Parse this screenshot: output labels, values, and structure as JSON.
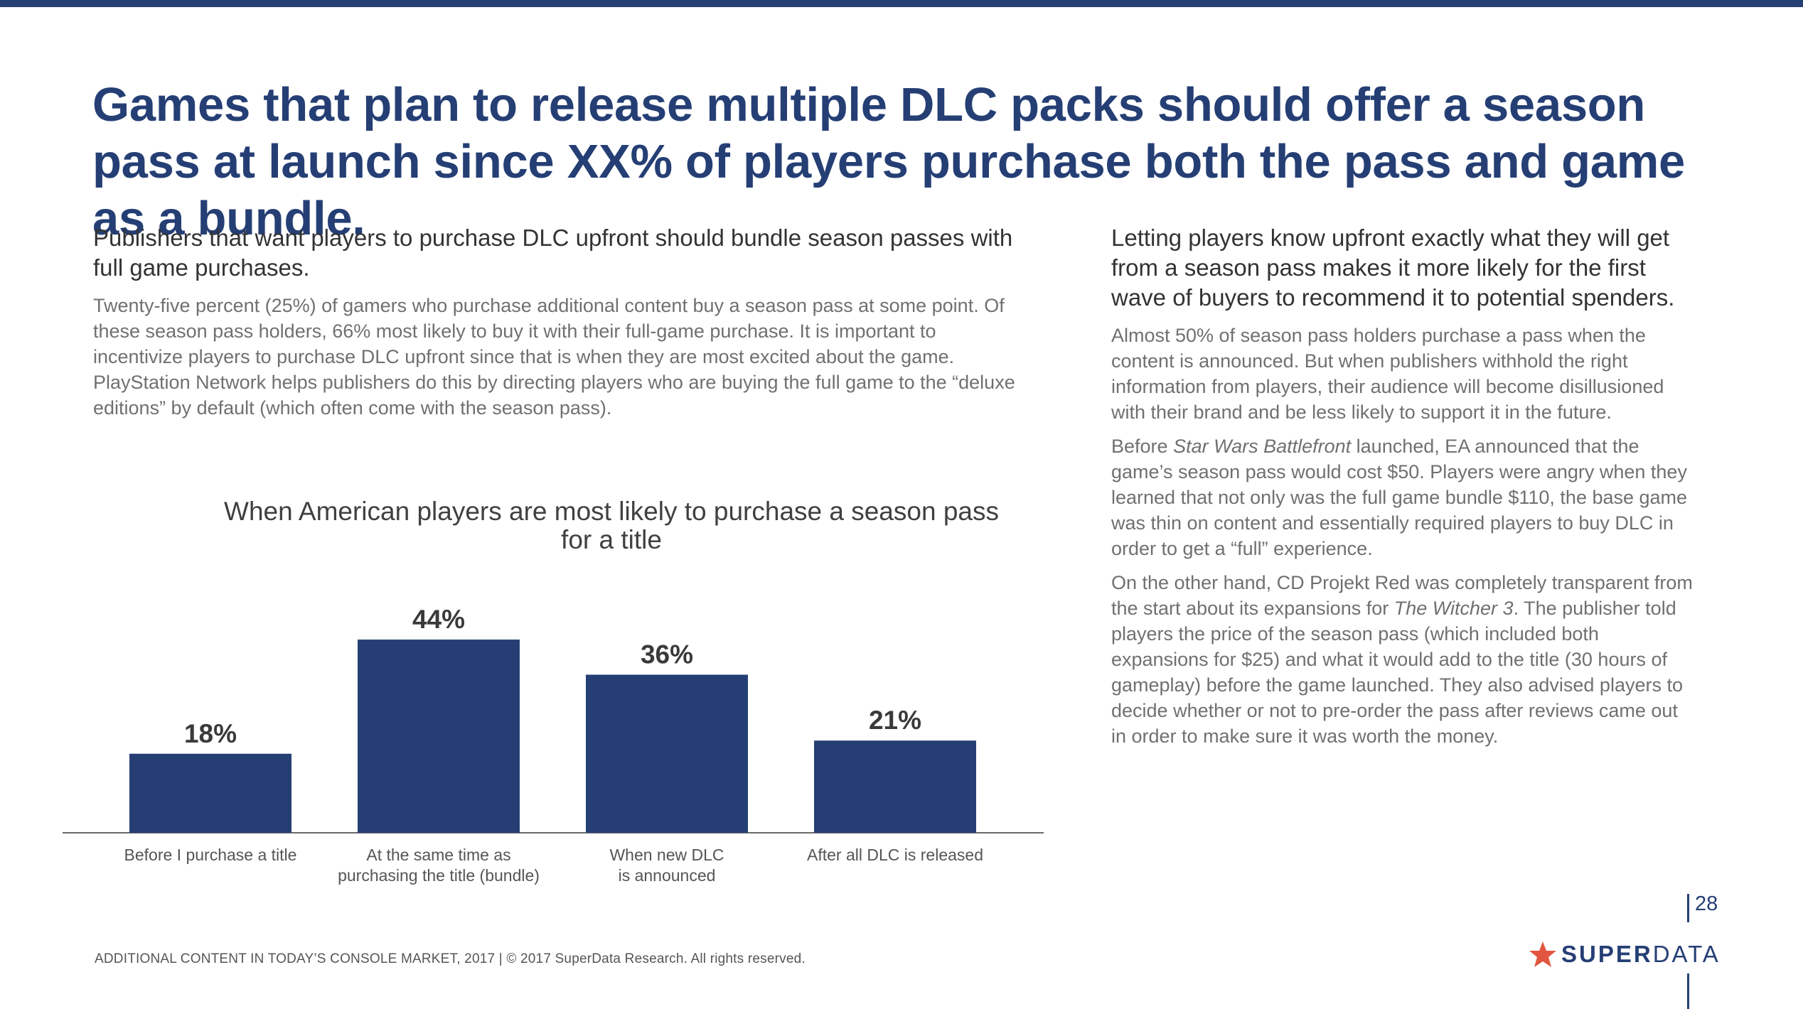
{
  "headline": "Games that plan to release multiple DLC packs should offer a season pass at launch since XX% of players purchase both the pass and game as a bundle.",
  "left": {
    "subhead": "Publishers that want players to purchase DLC upfront should bundle season passes with full game purchases.",
    "body": "Twenty-five percent (25%) of gamers who purchase additional content buy a season pass at some point. Of these season pass holders, 66% most likely to buy it with their full-game purchase. It is important to incentivize players to purchase DLC upfront since that is when they are most excited about the game. PlayStation Network helps publishers do this by directing players who are buying the full game to the “deluxe editions” by default (which often come with the season pass)."
  },
  "right": {
    "subhead": "Letting players know upfront exactly what they will get from a season pass makes it more likely for the first wave of buyers to recommend it to potential spenders.",
    "p1": "Almost 50% of season pass holders purchase a pass when the content is announced. But when publishers withhold the right information from players, their audience will become disillusioned with their brand and be less likely to support it in the future.",
    "p2_pre": "Before ",
    "p2_em": "Star Wars Battlefront",
    "p2_post": " launched, EA announced that the game’s season pass would cost $50. Players were angry when they learned that not only was the full game bundle $110, the base game was thin on content and essentially required players to buy DLC in order to get a “full” experience.",
    "p3_pre": "On the other hand, CD Projekt Red was completely transparent from the start about its expansions for ",
    "p3_em": "The Witcher 3",
    "p3_post": ". The publisher told players the price of the season pass (which included both expansions for $25) and what it would add to the title (30 hours of gameplay) before the game launched. They also advised players to decide whether or not to pre-order the pass after reviews came out in order to make sure it was worth the money."
  },
  "chart_data": {
    "type": "bar",
    "title": "When American players are most likely to purchase a season pass for a title",
    "categories": [
      [
        "Before I purchase a title"
      ],
      [
        "At the same time as",
        "purchasing the title (bundle)"
      ],
      [
        "When new DLC",
        "is announced"
      ],
      [
        "After all DLC is released"
      ]
    ],
    "values": [
      18,
      44,
      36,
      21
    ],
    "value_labels": [
      "18%",
      "44%",
      "36%",
      "21%"
    ],
    "unit": "%",
    "xlabel": "",
    "ylabel": "",
    "ylim": [
      0,
      44
    ],
    "bar_color": "#253f75",
    "grid": false,
    "legend": false
  },
  "footer": "ADDITIONAL CONTENT IN TODAY’S CONSOLE MARKET, 2017  |  © 2017 SuperData Research. All rights reserved.",
  "page_number": "28",
  "logo": {
    "bold": "SUPER",
    "light": "DATA",
    "star_color": "#e2553f",
    "text_color": "#253f75"
  },
  "colors": {
    "brand": "#253f75",
    "accent": "#e2553f"
  }
}
